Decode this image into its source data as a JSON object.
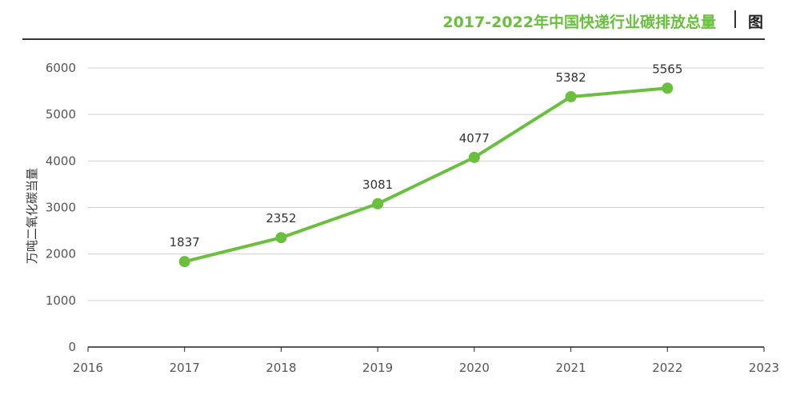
{
  "header": {
    "title": "2017-2022年中国快递行业碳排放总量",
    "figure_label": "图"
  },
  "chart_data": {
    "type": "line",
    "title": "2017-2022年中国快递行业碳排放总量",
    "ylabel": "万吨二氧化碳当量",
    "xlabel": "",
    "x_ticks": [
      "2016",
      "2017",
      "2018",
      "2019",
      "2020",
      "2021",
      "2022",
      "2023"
    ],
    "y_ticks": [
      "0",
      "1000",
      "2000",
      "3000",
      "4000",
      "5000",
      "6000"
    ],
    "xlim": [
      2016,
      2023
    ],
    "ylim": [
      0,
      6000
    ],
    "grid": true,
    "series": [
      {
        "x": [
          2017,
          2018,
          2019,
          2020,
          2021,
          2022
        ],
        "values": [
          1837,
          2352,
          3081,
          4077,
          5382,
          5565
        ],
        "labels": [
          "1837",
          "2352",
          "3081",
          "4077",
          "5382",
          "5565"
        ]
      }
    ],
    "colors": {
      "line": "#6abf3f",
      "marker": "#6abf3f",
      "grid": "#d0d0d0",
      "axis": "#222222"
    }
  }
}
